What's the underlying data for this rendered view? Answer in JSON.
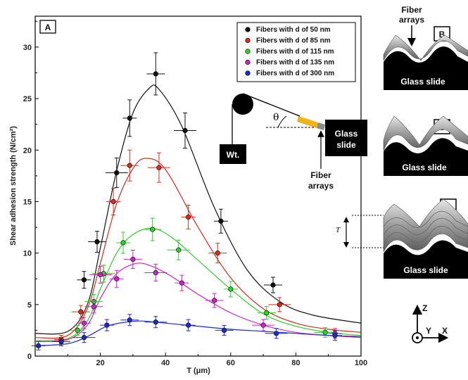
{
  "chart_data": {
    "type": "scatter",
    "panel_label": "A",
    "xlabel": "T (μm)",
    "ylabel": "Shear adhesion strength (N/cm²)",
    "xlim": [
      0,
      100
    ],
    "ylim": [
      0,
      33
    ],
    "xticks": [
      20,
      40,
      60,
      80,
      100
    ],
    "yticks": [
      0,
      5,
      10,
      15,
      20,
      25,
      30
    ],
    "legend_position": "top-right",
    "series": [
      {
        "name": "Fibers with d of 50 nm",
        "color": "#111111",
        "x": [
          15,
          19,
          25,
          29,
          37,
          46,
          57,
          73
        ],
        "y": [
          7.4,
          11.1,
          17.8,
          23.1,
          27.4,
          21.9,
          13.1,
          6.9
        ],
        "fit_x": [
          0,
          10,
          16,
          20,
          25,
          30,
          35,
          38,
          45,
          55,
          65,
          75,
          85,
          100
        ],
        "fit_y": [
          2.2,
          2.4,
          5,
          10.5,
          18,
          23.6,
          26,
          25.9,
          22.3,
          14.4,
          8.4,
          5.3,
          4,
          3.2
        ]
      },
      {
        "name": "Fibers with d of 85 nm",
        "color": "#dd2a1a",
        "x": [
          8,
          14,
          21,
          24,
          29,
          38,
          47,
          56,
          75
        ],
        "y": [
          1.6,
          4.3,
          8.0,
          15.0,
          18.5,
          18.3,
          13.5,
          10.0,
          5.0
        ],
        "fit_x": [
          0,
          10,
          16,
          20,
          25,
          30,
          34,
          40,
          50,
          60,
          70,
          80,
          90,
          100
        ],
        "fit_y": [
          1.8,
          2.0,
          4.6,
          9.0,
          14.8,
          18.2,
          19.2,
          18.1,
          12.5,
          7.6,
          4.6,
          3.2,
          2.6,
          2.3
        ]
      },
      {
        "name": "Fibers with d of 115 nm",
        "color": "#2ed02a",
        "x": [
          13,
          18,
          21,
          27,
          36,
          44,
          60,
          71,
          89
        ],
        "y": [
          2.5,
          5.3,
          8.0,
          11.0,
          12.3,
          10.3,
          6.5,
          4.2,
          2.3
        ],
        "fit_x": [
          0,
          10,
          16,
          20,
          25,
          30,
          36,
          42,
          50,
          60,
          70,
          80,
          90,
          100
        ],
        "fit_y": [
          1.5,
          1.7,
          3.4,
          6.5,
          10.0,
          11.8,
          12.4,
          11.5,
          9.3,
          6.5,
          4.1,
          2.9,
          2.3,
          2.0
        ]
      },
      {
        "name": "Fibers with d of 135 nm",
        "color": "#cc22cc",
        "x": [
          15,
          18,
          20,
          25,
          30,
          37,
          45,
          55,
          70,
          92
        ],
        "y": [
          3.2,
          4.8,
          7.9,
          7.5,
          9.4,
          8.1,
          7.1,
          5.4,
          3.0,
          2.2
        ],
        "fit_x": [
          0,
          10,
          16,
          20,
          25,
          31,
          36,
          42,
          50,
          60,
          70,
          80,
          90,
          100
        ],
        "fit_y": [
          1.4,
          1.6,
          3.0,
          5.6,
          8.0,
          9.0,
          8.7,
          7.7,
          6.0,
          4.2,
          3.0,
          2.3,
          2.0,
          1.8
        ]
      },
      {
        "name": "Fibers with d of 300 nm",
        "color": "#1a2ad0",
        "x": [
          1,
          8,
          15,
          22,
          29,
          37,
          47,
          58,
          74,
          92
        ],
        "y": [
          1.0,
          1.4,
          1.8,
          3.0,
          3.5,
          3.3,
          3.0,
          2.5,
          2.2,
          2.0
        ],
        "fit_x": [
          0,
          10,
          16,
          22,
          28,
          33,
          40,
          50,
          60,
          70,
          80,
          90,
          100
        ],
        "fit_y": [
          1.0,
          1.2,
          1.9,
          2.9,
          3.3,
          3.4,
          3.2,
          2.9,
          2.6,
          2.4,
          2.2,
          2.0,
          1.9
        ]
      }
    ]
  },
  "inset": {
    "weight_label": "Wt.",
    "angle_label": "θ",
    "glass_slide_label_1": "Glass",
    "glass_slide_label_2": "slide",
    "fiber_arrays_label_1": "Fiber",
    "fiber_arrays_label_2": "arrays"
  },
  "panels": {
    "B": {
      "label": "B",
      "top_label_1": "Fiber",
      "top_label_2": "arrays",
      "slide_label": "Glass slide"
    },
    "C": {
      "label": "C",
      "slide_label": "Glass slide"
    },
    "D": {
      "label": "D",
      "slide_label": "Glass slide",
      "thickness_label": "T"
    }
  },
  "axes_triad": {
    "z": "Z",
    "y": "Y",
    "x": "X"
  }
}
